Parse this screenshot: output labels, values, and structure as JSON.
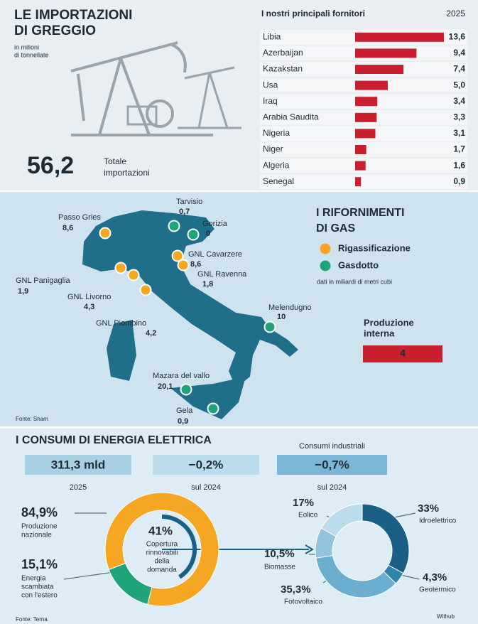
{
  "import": {
    "title_lines": [
      "LE IMPORTAZIONI",
      "DI GREGGIO"
    ],
    "unit_lines": [
      "in milioni",
      "di tonnellate"
    ],
    "total": "56,2",
    "total_label_lines": [
      "Totale",
      "importazioni"
    ]
  },
  "chart_data": [
    {
      "type": "bar",
      "title": "I nostri principali fornitori",
      "subtitle": "2025",
      "categories": [
        "Libia",
        "Azerbaijan",
        "Kazakstan",
        "Usa",
        "Iraq",
        "Arabia Saudita",
        "Nigeria",
        "Niger",
        "Algeria",
        "Senegal"
      ],
      "values": [
        13.6,
        9.4,
        7.4,
        5.0,
        3.4,
        3.3,
        3.1,
        1.7,
        1.6,
        0.9
      ],
      "value_labels": [
        "13,6",
        "9,4",
        "7,4",
        "5,0",
        "3,4",
        "3,3",
        "3,1",
        "1,7",
        "1,6",
        "0,9"
      ],
      "color": "#c8202f"
    },
    {
      "type": "donut",
      "categories": [
        [
          "Produzione",
          "nazionale"
        ],
        [
          "Energia",
          "scambiata",
          "con l'estero"
        ]
      ],
      "values": [
        84.9,
        15.1
      ],
      "value_labels": [
        "84,9%",
        "15,1%"
      ],
      "colors": [
        "#f5a623",
        "#1fa37a"
      ],
      "center": {
        "values": [
          41
        ],
        "value_labels": [
          "41%"
        ],
        "lines": [
          "Copertura",
          "rinnovabili",
          "della",
          "domanda"
        ],
        "color": "#1a5f86"
      }
    },
    {
      "type": "donut",
      "categories": [
        "Idroelettrico",
        "Geotermico",
        "Fotovoltaico",
        "Biomasse",
        "Eolico"
      ],
      "values": [
        33,
        4.3,
        35.3,
        10.5,
        17
      ],
      "value_labels": [
        "33%",
        "4,3%",
        "35,3%",
        "10,5%",
        "17%"
      ],
      "colors": [
        "#1a5f86",
        "#2f83ad",
        "#6aaed0",
        "#93c4de",
        "#bcdcec"
      ]
    }
  ],
  "gas": {
    "title_lines": [
      "I RIFORNIMENTI",
      "DI GAS"
    ],
    "legend": [
      {
        "name": "Rigassificazione",
        "color": "#f5a623"
      },
      {
        "name": "Gasdotto",
        "color": "#1fa37a"
      }
    ],
    "note": "dati in miliardi di metri cubi",
    "points": [
      {
        "name": "Tarvisio",
        "label": "0,7",
        "color": "#1fa37a"
      },
      {
        "name": "Gorizia",
        "label": "0",
        "color": "#1fa37a"
      },
      {
        "name": "Passo Gries",
        "label": "8,6",
        "color": "#f5a623"
      },
      {
        "name": "GNL Cavarzere",
        "label": "8,6",
        "color": "#f5a623"
      },
      {
        "name": "GNL Ravenna",
        "label": "1,8",
        "color": "#f5a623"
      },
      {
        "name": "GNL Panigaglia",
        "label": "1,9",
        "color": "#f5a623"
      },
      {
        "name": "GNL Livorno",
        "label": "4,3",
        "color": "#f5a623"
      },
      {
        "name": "GNL Piombino",
        "label": "4,2",
        "color": "#f5a623"
      },
      {
        "name": "Melendugno",
        "label": "10",
        "color": "#1fa37a"
      },
      {
        "name": "Mazara del vallo",
        "label": "20,1",
        "color": "#1fa37a"
      },
      {
        "name": "Gela",
        "label": "0,9",
        "color": "#1fa37a"
      }
    ],
    "production": {
      "title_lines": [
        "Produzione",
        "interna"
      ],
      "value": "4"
    },
    "source": "Fonte: Snam"
  },
  "electric": {
    "title": "I CONSUMI DI ENERGIA ELETTRICA",
    "boxes": [
      {
        "value": "311,3 mld",
        "caption": "2025"
      },
      {
        "value": "−0,2%",
        "caption": "sul 2024"
      },
      {
        "heading": "Consumi industriali",
        "value": "−0,7%",
        "caption": "sul 2024"
      }
    ],
    "source": "Fonte: Terna",
    "credit": "Withub"
  }
}
